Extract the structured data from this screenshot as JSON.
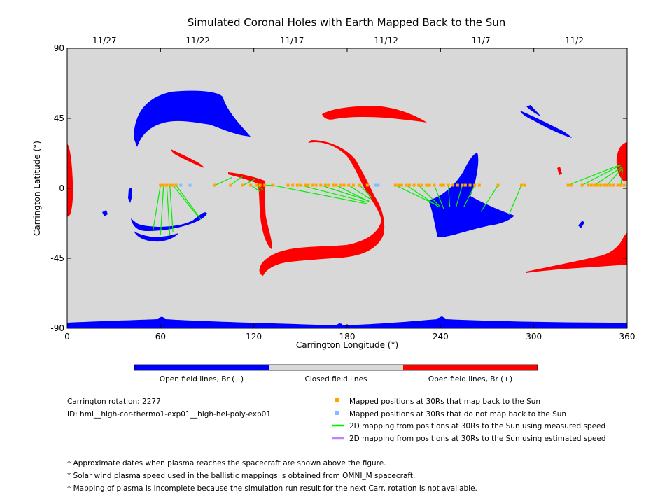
{
  "chart_data": {
    "type": "scatter",
    "title": "Simulated Coronal Holes with Earth Mapped Back to the Sun",
    "xlabel": "Carrington Longitude (°)",
    "ylabel": "Carrington Latitude (°)",
    "xlim": [
      0,
      360
    ],
    "ylim": [
      -90,
      90
    ],
    "x_ticks": [
      "0",
      "60",
      "120",
      "180",
      "240",
      "300",
      "360"
    ],
    "y_ticks": [
      "90",
      "45",
      "0",
      "-45",
      "-90"
    ],
    "top_axis": {
      "tick_labels": [
        "11/27",
        "11/22",
        "11/17",
        "11/12",
        "11/7",
        "11/2"
      ],
      "tick_lons": [
        24,
        84,
        144.5,
        205,
        266,
        326
      ]
    },
    "grid": false,
    "colors": {
      "negative_open": "#0000ff",
      "positive_open": "#ff0000",
      "closed": "#d8d8d8",
      "mapped": "#ffa500",
      "unmapped": "#7fbfff",
      "measured_speed": "#00ee00",
      "estimated_speed": "#bf80ff"
    },
    "mapped_lons": [
      60,
      62,
      64,
      66,
      68,
      70,
      95,
      105,
      113,
      118,
      122,
      124,
      127,
      132,
      142,
      145,
      148,
      150,
      153,
      155,
      158,
      160,
      163,
      166,
      168,
      171,
      173,
      176,
      178,
      181,
      184,
      188,
      193,
      211,
      213,
      215,
      218,
      220,
      223,
      226,
      228,
      231,
      233,
      236,
      240,
      242,
      245,
      248,
      251,
      254,
      256,
      259,
      262,
      265,
      277,
      292,
      294,
      322,
      324,
      331,
      335,
      337,
      339,
      341,
      343,
      345,
      347,
      349,
      351,
      354,
      356,
      358
    ],
    "unmapped_lons": [
      73,
      79,
      198,
      200
    ],
    "mapping_lines": [
      {
        "from": [
          60,
          2
        ],
        "to": [
          55,
          -28
        ]
      },
      {
        "from": [
          62,
          2
        ],
        "to": [
          60,
          -30
        ]
      },
      {
        "from": [
          64,
          2
        ],
        "to": [
          66,
          -30
        ]
      },
      {
        "from": [
          66,
          2
        ],
        "to": [
          68,
          -28
        ]
      },
      {
        "from": [
          68,
          2
        ],
        "to": [
          84,
          -18
        ]
      },
      {
        "from": [
          70,
          2
        ],
        "to": [
          86,
          -20
        ]
      },
      {
        "from": [
          95,
          2
        ],
        "to": [
          106,
          7
        ]
      },
      {
        "from": [
          105,
          2
        ],
        "to": [
          113,
          8
        ]
      },
      {
        "from": [
          113,
          2
        ],
        "to": [
          121,
          6
        ]
      },
      {
        "from": [
          118,
          2
        ],
        "to": [
          124,
          -2
        ]
      },
      {
        "from": [
          122,
          2
        ],
        "to": [
          126,
          -1
        ]
      },
      {
        "from": [
          127,
          2
        ],
        "to": [
          133,
          2
        ]
      },
      {
        "from": [
          132,
          2
        ],
        "to": [
          193,
          -10
        ]
      },
      {
        "from": [
          150,
          2
        ],
        "to": [
          193,
          -9
        ]
      },
      {
        "from": [
          163,
          2
        ],
        "to": [
          194,
          -8
        ]
      },
      {
        "from": [
          173,
          2
        ],
        "to": [
          195,
          -9
        ]
      },
      {
        "from": [
          181,
          2
        ],
        "to": [
          195,
          -7
        ]
      },
      {
        "from": [
          188,
          2
        ],
        "to": [
          196,
          -6
        ]
      },
      {
        "from": [
          211,
          2
        ],
        "to": [
          238,
          -11
        ]
      },
      {
        "from": [
          218,
          2
        ],
        "to": [
          239,
          -12
        ]
      },
      {
        "from": [
          226,
          2
        ],
        "to": [
          240,
          -12
        ]
      },
      {
        "from": [
          236,
          2
        ],
        "to": [
          242,
          -13
        ]
      },
      {
        "from": [
          245,
          2
        ],
        "to": [
          246,
          -12
        ]
      },
      {
        "from": [
          254,
          2
        ],
        "to": [
          250,
          -12
        ]
      },
      {
        "from": [
          262,
          2
        ],
        "to": [
          255,
          -12
        ]
      },
      {
        "from": [
          277,
          2
        ],
        "to": [
          266,
          -15
        ]
      },
      {
        "from": [
          292,
          2
        ],
        "to": [
          284,
          -17
        ]
      },
      {
        "from": [
          322,
          2
        ],
        "to": [
          355,
          15
        ]
      },
      {
        "from": [
          331,
          2
        ],
        "to": [
          356,
          15
        ]
      },
      {
        "from": [
          339,
          2
        ],
        "to": [
          357,
          14
        ]
      },
      {
        "from": [
          347,
          2
        ],
        "to": [
          357,
          13
        ]
      },
      {
        "from": [
          356,
          2
        ],
        "to": [
          357,
          12
        ]
      }
    ]
  },
  "colorbar": {
    "labels": [
      "Open field lines, Br (−)",
      "Closed field lines",
      "Open field lines, Br (+)"
    ]
  },
  "info": {
    "rotation": "Carrington rotation: 2277",
    "id": "ID: hmi__high-cor-thermo1-exp01__high-hel-poly-exp01"
  },
  "legend": [
    "Mapped positions at 30Rs that map back to the Sun",
    "Mapped positions at 30Rs that do not map back to the Sun",
    "2D mapping from positions at 30Rs to the Sun using measured speed",
    "2D mapping from positions at 30Rs to the Sun using estimated speed"
  ],
  "notes": [
    "* Approximate dates when plasma reaches the spacecraft are shown above the figure.",
    "* Solar wind plasma speed used in the ballistic mappings is obtained from OMNI_M spacecraft.",
    "* Mapping of plasma is incomplete because the simulation run result for the next Carr. rotation is not available."
  ]
}
